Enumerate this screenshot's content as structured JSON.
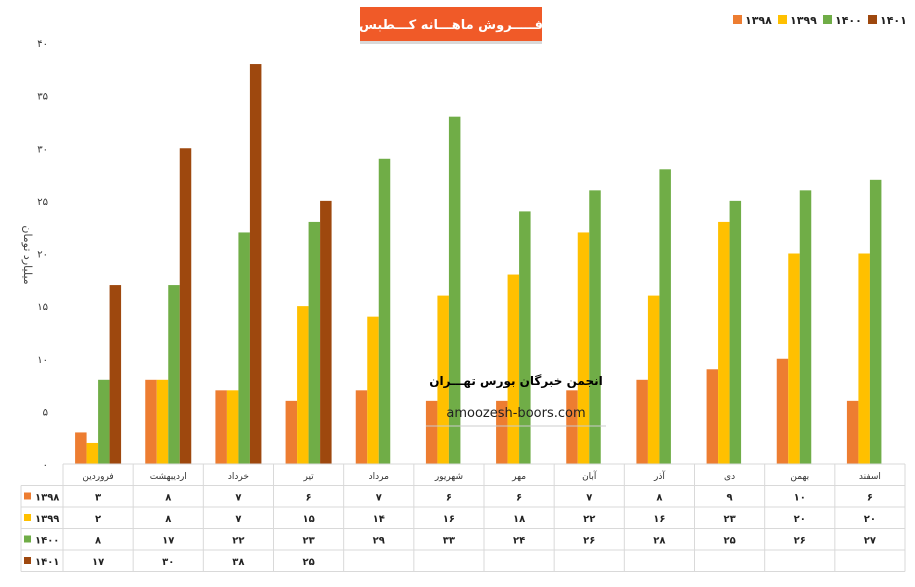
{
  "chart_data": {
    "type": "bar",
    "title": "فـــــروش ماهـــانه کـــطبس",
    "ylabel": "میلیارد تومان",
    "ylim": [
      0,
      40
    ],
    "yticks": [
      "۰",
      "۵",
      "۱۰",
      "۱۵",
      "۲۰",
      "۲۵",
      "۳۰",
      "۳۵",
      "۴۰"
    ],
    "grid": false,
    "legend_position": "top-right",
    "categories": [
      "فروردین",
      "اردیبهشت",
      "خرداد",
      "تیر",
      "مرداد",
      "شهریور",
      "مهر",
      "آبان",
      "آذر",
      "دی",
      "بهمن",
      "اسفند"
    ],
    "series": [
      {
        "name": "۱۳۹۸",
        "color": "#ED7D31",
        "values": [
          3,
          8,
          7,
          6,
          7,
          6,
          6,
          7,
          8,
          9,
          10,
          6
        ],
        "labels": [
          "۳",
          "۸",
          "۷",
          "۶",
          "۷",
          "۶",
          "۶",
          "۷",
          "۸",
          "۹",
          "۱۰",
          "۶"
        ]
      },
      {
        "name": "۱۳۹۹",
        "color": "#FFC000",
        "values": [
          2,
          8,
          7,
          15,
          14,
          16,
          18,
          22,
          16,
          23,
          20,
          20
        ],
        "labels": [
          "۲",
          "۸",
          "۷",
          "۱۵",
          "۱۴",
          "۱۶",
          "۱۸",
          "۲۲",
          "۱۶",
          "۲۳",
          "۲۰",
          "۲۰"
        ]
      },
      {
        "name": "۱۴۰۰",
        "color": "#70AD47",
        "values": [
          8,
          17,
          22,
          23,
          29,
          33,
          24,
          26,
          28,
          25,
          26,
          27
        ],
        "labels": [
          "۸",
          "۱۷",
          "۲۲",
          "۲۳",
          "۲۹",
          "۳۳",
          "۲۴",
          "۲۶",
          "۲۸",
          "۲۵",
          "۲۶",
          "۲۷"
        ]
      },
      {
        "name": "۱۴۰۱",
        "color": "#9E480E",
        "values": [
          17,
          30,
          38,
          25,
          null,
          null,
          null,
          null,
          null,
          null,
          null,
          null
        ],
        "labels": [
          "۱۷",
          "۳۰",
          "۳۸",
          "۲۵",
          "",
          "",
          "",
          "",
          "",
          "",
          "",
          ""
        ]
      }
    ]
  },
  "title_box_color": "#F05A28",
  "watermark": {
    "title": "انجمن خبرگان بورس تهـــران",
    "url": "amoozesh-boors.com"
  }
}
